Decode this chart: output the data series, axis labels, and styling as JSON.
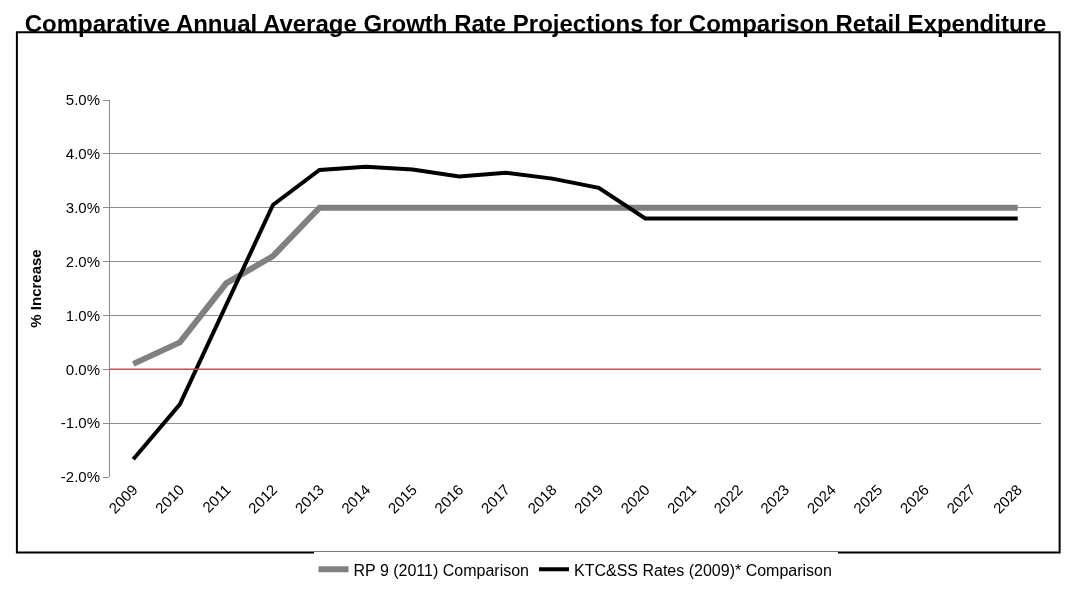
{
  "chart_data": {
    "type": "line",
    "title": "Comparative Annual Average Growth Rate Projections for Comparison Retail Expenditure",
    "ylabel": "% Increase",
    "categories": [
      "2009",
      "2010",
      "2011",
      "2012",
      "2013",
      "2014",
      "2015",
      "2016",
      "2017",
      "2018",
      "2019",
      "2020",
      "2021",
      "2022",
      "2023",
      "2024",
      "2025",
      "2026",
      "2027",
      "2028"
    ],
    "series": [
      {
        "name": "RP 9 (2011) Comparison",
        "color": "#808080",
        "values": [
          0.1,
          0.5,
          1.6,
          2.1,
          3.0,
          3.0,
          3.0,
          3.0,
          3.0,
          3.0,
          3.0,
          3.0,
          3.0,
          3.0,
          3.0,
          3.0,
          3.0,
          3.0,
          3.0,
          3.0
        ]
      },
      {
        "name": "KTC&SS Rates (2009)* Comparison",
        "color": "#000000",
        "values": [
          -1.67,
          -0.65,
          1.2,
          3.05,
          3.7,
          3.76,
          3.71,
          3.58,
          3.65,
          3.54,
          3.37,
          2.8,
          2.8,
          2.8,
          2.8,
          2.8,
          2.8,
          2.8,
          2.8,
          2.8
        ]
      }
    ],
    "ylim": [
      -2,
      5
    ],
    "yticks": [
      {
        "value": -2,
        "label": "-2.0%"
      },
      {
        "value": -1,
        "label": "-1.0%"
      },
      {
        "value": 0,
        "label": "0.0%"
      },
      {
        "value": 1,
        "label": "1.0%"
      },
      {
        "value": 2,
        "label": "2.0%"
      },
      {
        "value": 3,
        "label": "3.0%"
      },
      {
        "value": 4,
        "label": "4.0%"
      },
      {
        "value": 5,
        "label": "5.0%"
      }
    ],
    "ref_lines": [
      {
        "axis": "y",
        "value": 0,
        "color": "#c0504d"
      }
    ],
    "grid": "y",
    "legend": "bottom",
    "marker": "none",
    "line_style": "solid"
  }
}
